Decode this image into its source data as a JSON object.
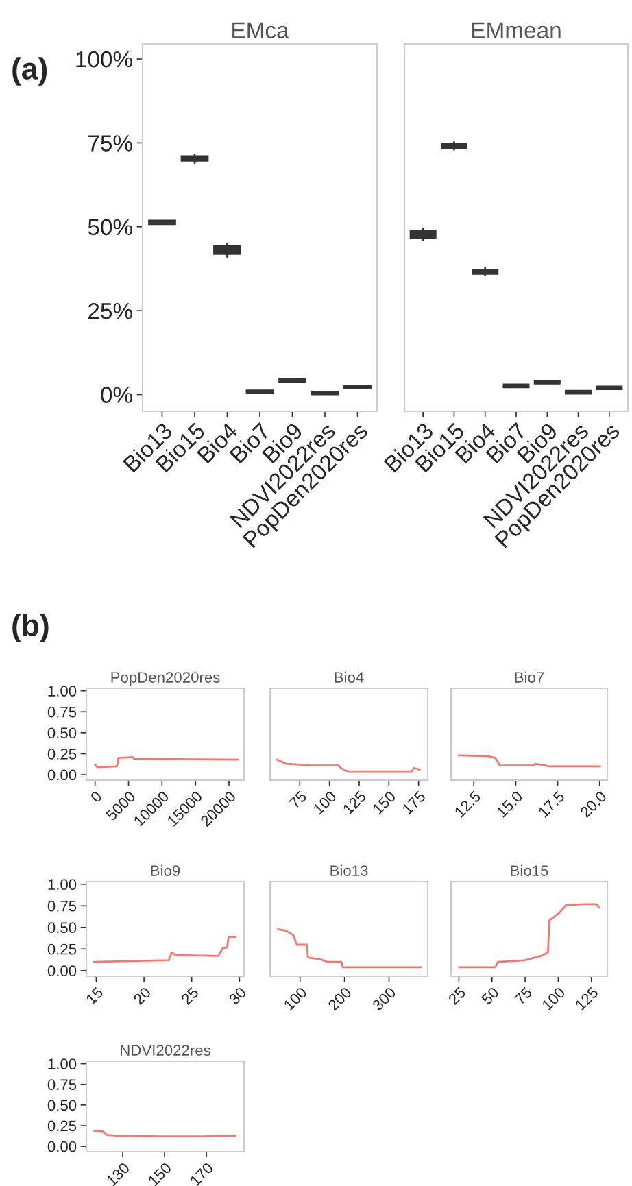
{
  "chart_data": [
    {
      "type": "box",
      "title": "EMca",
      "annotations": [
        "(a)"
      ],
      "categories": [
        "Bio13",
        "Bio15",
        "Bio4",
        "Bio7",
        "Bio9",
        "NDVI2022res",
        "PopDen2020res"
      ],
      "color": "#333333",
      "ylim": [
        -0.05,
        1.045
      ],
      "yticks": [
        {
          "value": 0,
          "label": "0%"
        },
        {
          "value": 0.25,
          "label": "25%"
        },
        {
          "value": 0.5,
          "label": "50%"
        },
        {
          "value": 0.75,
          "label": "75%"
        },
        {
          "value": 1,
          "label": "100%"
        }
      ],
      "boxes": [
        {
          "low": 0.508,
          "q1": 0.508,
          "median": 0.513,
          "q3": 0.518,
          "high": 0.518
        },
        {
          "low": 0.69,
          "q1": 0.697,
          "median": 0.704,
          "q3": 0.71,
          "high": 0.715
        },
        {
          "low": 0.41,
          "q1": 0.419,
          "median": 0.426,
          "q3": 0.442,
          "high": 0.45
        },
        {
          "low": 0.004,
          "q1": 0.004,
          "median": 0.008,
          "q3": 0.012,
          "high": 0.012
        },
        {
          "low": 0.038,
          "q1": 0.038,
          "median": 0.042,
          "q3": 0.046,
          "high": 0.046
        },
        {
          "low": 0.001,
          "q1": 0.001,
          "median": 0.004,
          "q3": 0.007,
          "high": 0.007
        },
        {
          "low": 0.019,
          "q1": 0.019,
          "median": 0.023,
          "q3": 0.027,
          "high": 0.027
        }
      ]
    },
    {
      "type": "box",
      "title": "EMmean",
      "categories": [
        "Bio13",
        "Bio15",
        "Bio4",
        "Bio7",
        "Bio9",
        "NDVI2022res",
        "PopDen2020res"
      ],
      "color": "#333333",
      "ylim": [
        -0.05,
        1.045
      ],
      "tick_labels": "x",
      "boxes": [
        {
          "low": 0.46,
          "q1": 0.467,
          "median": 0.478,
          "q3": 0.488,
          "high": 0.495
        },
        {
          "low": 0.73,
          "q1": 0.735,
          "median": 0.742,
          "q3": 0.748,
          "high": 0.752
        },
        {
          "low": 0.355,
          "q1": 0.36,
          "median": 0.366,
          "q3": 0.372,
          "high": 0.378
        },
        {
          "low": 0.022,
          "q1": 0.022,
          "median": 0.026,
          "q3": 0.03,
          "high": 0.03
        },
        {
          "low": 0.033,
          "q1": 0.033,
          "median": 0.037,
          "q3": 0.041,
          "high": 0.041
        },
        {
          "low": 0.003,
          "q1": 0.003,
          "median": 0.007,
          "q3": 0.011,
          "high": 0.011
        },
        {
          "low": 0.016,
          "q1": 0.016,
          "median": 0.02,
          "q3": 0.024,
          "high": 0.024
        }
      ]
    },
    {
      "type": "line",
      "title": "PopDen2020res",
      "annotations": [
        "(b)"
      ],
      "xlim": [
        -1297,
        22253
      ],
      "xticks": [
        0,
        5000,
        10000,
        15000,
        20000
      ],
      "ylim": [
        -0.065,
        1.03
      ],
      "yticks": [
        {
          "value": 0,
          "label": "0.00"
        },
        {
          "value": 0.25,
          "label": "0.25"
        },
        {
          "value": 0.5,
          "label": "0.50"
        },
        {
          "value": 0.75,
          "label": "0.75"
        },
        {
          "value": 1,
          "label": "1.00"
        }
      ],
      "series": [
        {
          "color": "#F8766D",
          "x": [
            0,
            340,
            3277,
            3481,
            5666,
            5802,
            21365
          ],
          "values": [
            0.12,
            0.09,
            0.1,
            0.2,
            0.21,
            0.19,
            0.18
          ]
        }
      ]
    },
    {
      "type": "line",
      "title": "Bio4",
      "xlim": [
        50,
        182.7
      ],
      "xticks": [
        75,
        100,
        125,
        150,
        175
      ],
      "ylim": [
        -0.065,
        1.03
      ],
      "tick_labels": "x",
      "series": [
        {
          "color": "#F8766D",
          "x": [
            55.8,
            63.5,
            75,
            84.6,
            107.7,
            109.6,
            115.4,
            169,
            171,
            176
          ],
          "values": [
            0.18,
            0.13,
            0.12,
            0.11,
            0.11,
            0.08,
            0.04,
            0.04,
            0.08,
            0.06
          ]
        }
      ]
    },
    {
      "type": "line",
      "title": "Bio7",
      "xlim": [
        11.14,
        20.46
      ],
      "xticks": [
        {
          "value": 12.5,
          "label": "12.5"
        },
        {
          "value": 15,
          "label": "15.0"
        },
        {
          "value": 17.5,
          "label": "17.5"
        },
        {
          "value": 20,
          "label": "20.0"
        }
      ],
      "ylim": [
        -0.065,
        1.03
      ],
      "tick_labels": "x",
      "series": [
        {
          "color": "#F8766D",
          "x": [
            11.6,
            13.37,
            13.78,
            14.05,
            16.1,
            16.15,
            16.78,
            16.9,
            20.05
          ],
          "values": [
            0.23,
            0.22,
            0.2,
            0.11,
            0.11,
            0.13,
            0.11,
            0.1,
            0.1
          ]
        }
      ]
    },
    {
      "type": "line",
      "title": "Bio9",
      "xlim": [
        13.96,
        30.48
      ],
      "xticks": [
        15,
        20,
        25,
        30
      ],
      "ylim": [
        -0.065,
        1.03
      ],
      "yticks": [
        {
          "value": 0,
          "label": "0.00"
        },
        {
          "value": 0.25,
          "label": "0.25"
        },
        {
          "value": 0.5,
          "label": "0.50"
        },
        {
          "value": 0.75,
          "label": "0.75"
        },
        {
          "value": 1,
          "label": "1.00"
        }
      ],
      "series": [
        {
          "color": "#F8766D",
          "x": [
            14.76,
            22.57,
            22.9,
            23.28,
            27.78,
            28.25,
            28.7,
            28.87,
            29.58
          ],
          "values": [
            0.1,
            0.12,
            0.21,
            0.18,
            0.17,
            0.26,
            0.27,
            0.39,
            0.39
          ]
        }
      ]
    },
    {
      "type": "line",
      "title": "Bio13",
      "xlim": [
        32.6,
        387
      ],
      "xticks": [
        100,
        200,
        300
      ],
      "ylim": [
        -0.065,
        1.03
      ],
      "tick_labels": "x",
      "series": [
        {
          "color": "#F8766D",
          "x": [
            50.3,
            69,
            85,
            92.7,
            115.5,
            117.6,
            146.6,
            162,
            193,
            196,
            372.5
          ],
          "values": [
            0.48,
            0.46,
            0.41,
            0.3,
            0.3,
            0.15,
            0.13,
            0.1,
            0.1,
            0.04,
            0.04
          ]
        }
      ]
    },
    {
      "type": "line",
      "title": "Bio15",
      "xlim": [
        19.1,
        137
      ],
      "xticks": [
        25,
        50,
        75,
        100,
        125
      ],
      "ylim": [
        -0.065,
        1.03
      ],
      "tick_labels": "x",
      "series": [
        {
          "color": "#F8766D",
          "x": [
            25,
            52.6,
            54.3,
            75,
            87,
            92.2,
            93.3,
            100.9,
            106,
            119.8,
            128.4,
            130.9
          ],
          "values": [
            0.04,
            0.04,
            0.1,
            0.12,
            0.17,
            0.21,
            0.58,
            0.67,
            0.76,
            0.77,
            0.77,
            0.73
          ]
        }
      ]
    },
    {
      "type": "line",
      "title": "NDVI2022res",
      "xlim": [
        112.6,
        188
      ],
      "xticks": [
        130,
        150,
        170
      ],
      "ylim": [
        -0.065,
        1.03
      ],
      "yticks": [
        {
          "value": 0,
          "label": "0.00"
        },
        {
          "value": 0.25,
          "label": "0.25"
        },
        {
          "value": 0.5,
          "label": "0.50"
        },
        {
          "value": 0.75,
          "label": "0.75"
        },
        {
          "value": 1,
          "label": "1.00"
        }
      ],
      "series": [
        {
          "color": "#F8766D",
          "x": [
            116.3,
            120.7,
            122.2,
            126,
            147.8,
            169.6,
            174,
            184
          ],
          "values": [
            0.19,
            0.18,
            0.14,
            0.13,
            0.12,
            0.12,
            0.13,
            0.13
          ]
        }
      ]
    }
  ]
}
